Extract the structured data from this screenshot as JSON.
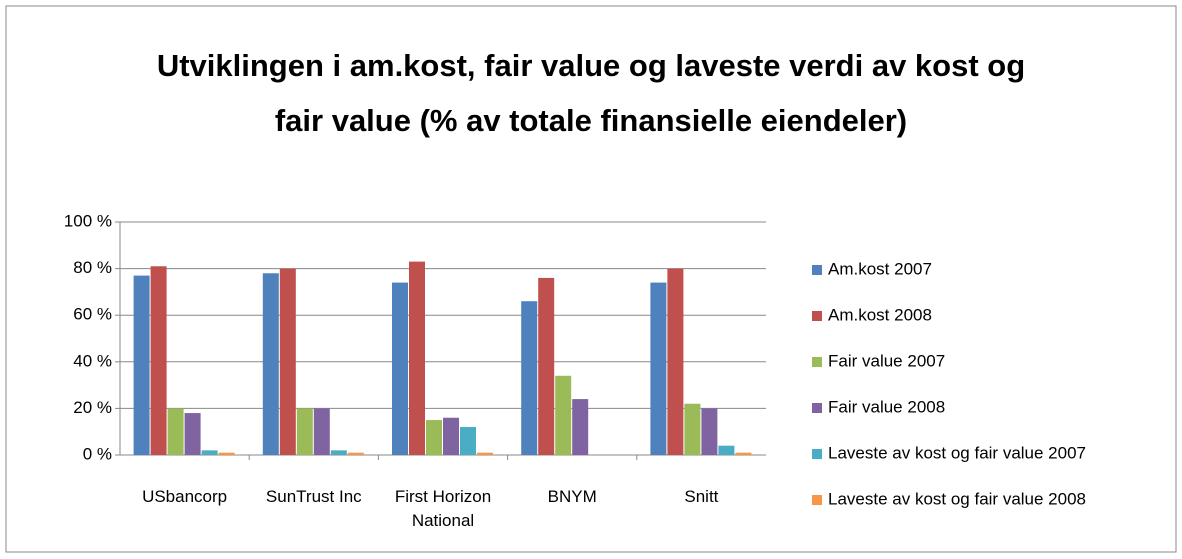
{
  "chart_data": {
    "type": "bar",
    "title": "Utviklingen i am.kost, fair value og laveste verdi av kost og fair value (% av totale finansielle eiendeler)",
    "categories": [
      "USbancorp",
      "SunTrust Inc",
      "First Horizon National",
      "BNYM",
      "Snitt"
    ],
    "series": [
      {
        "name": "Am.kost 2007",
        "color": "#4f81bd",
        "values": [
          77,
          78,
          74,
          66,
          74
        ]
      },
      {
        "name": "Am.kost 2008",
        "color": "#c0504d",
        "values": [
          81,
          80,
          83,
          76,
          80
        ]
      },
      {
        "name": "Fair value 2007",
        "color": "#9bbb59",
        "values": [
          20,
          20,
          15,
          34,
          22
        ]
      },
      {
        "name": "Fair value 2008",
        "color": "#8064a2",
        "values": [
          18,
          20,
          16,
          24,
          20
        ]
      },
      {
        "name": "Laveste av kost og fair value 2007",
        "color": "#4bacc6",
        "values": [
          2,
          2,
          12,
          0,
          4
        ]
      },
      {
        "name": "Laveste av kost og fair value 2008",
        "color": "#f79646",
        "values": [
          1,
          1,
          1,
          0,
          1
        ]
      }
    ],
    "ylim": [
      0,
      100
    ],
    "yticks": [
      {
        "value": 0,
        "label": "0 %"
      },
      {
        "value": 20,
        "label": "20 %"
      },
      {
        "value": 40,
        "label": "40 %"
      },
      {
        "value": 60,
        "label": "60 %"
      },
      {
        "value": 80,
        "label": "80 %"
      },
      {
        "value": 100,
        "label": "100 %"
      }
    ],
    "grid": true,
    "legend": "right"
  }
}
